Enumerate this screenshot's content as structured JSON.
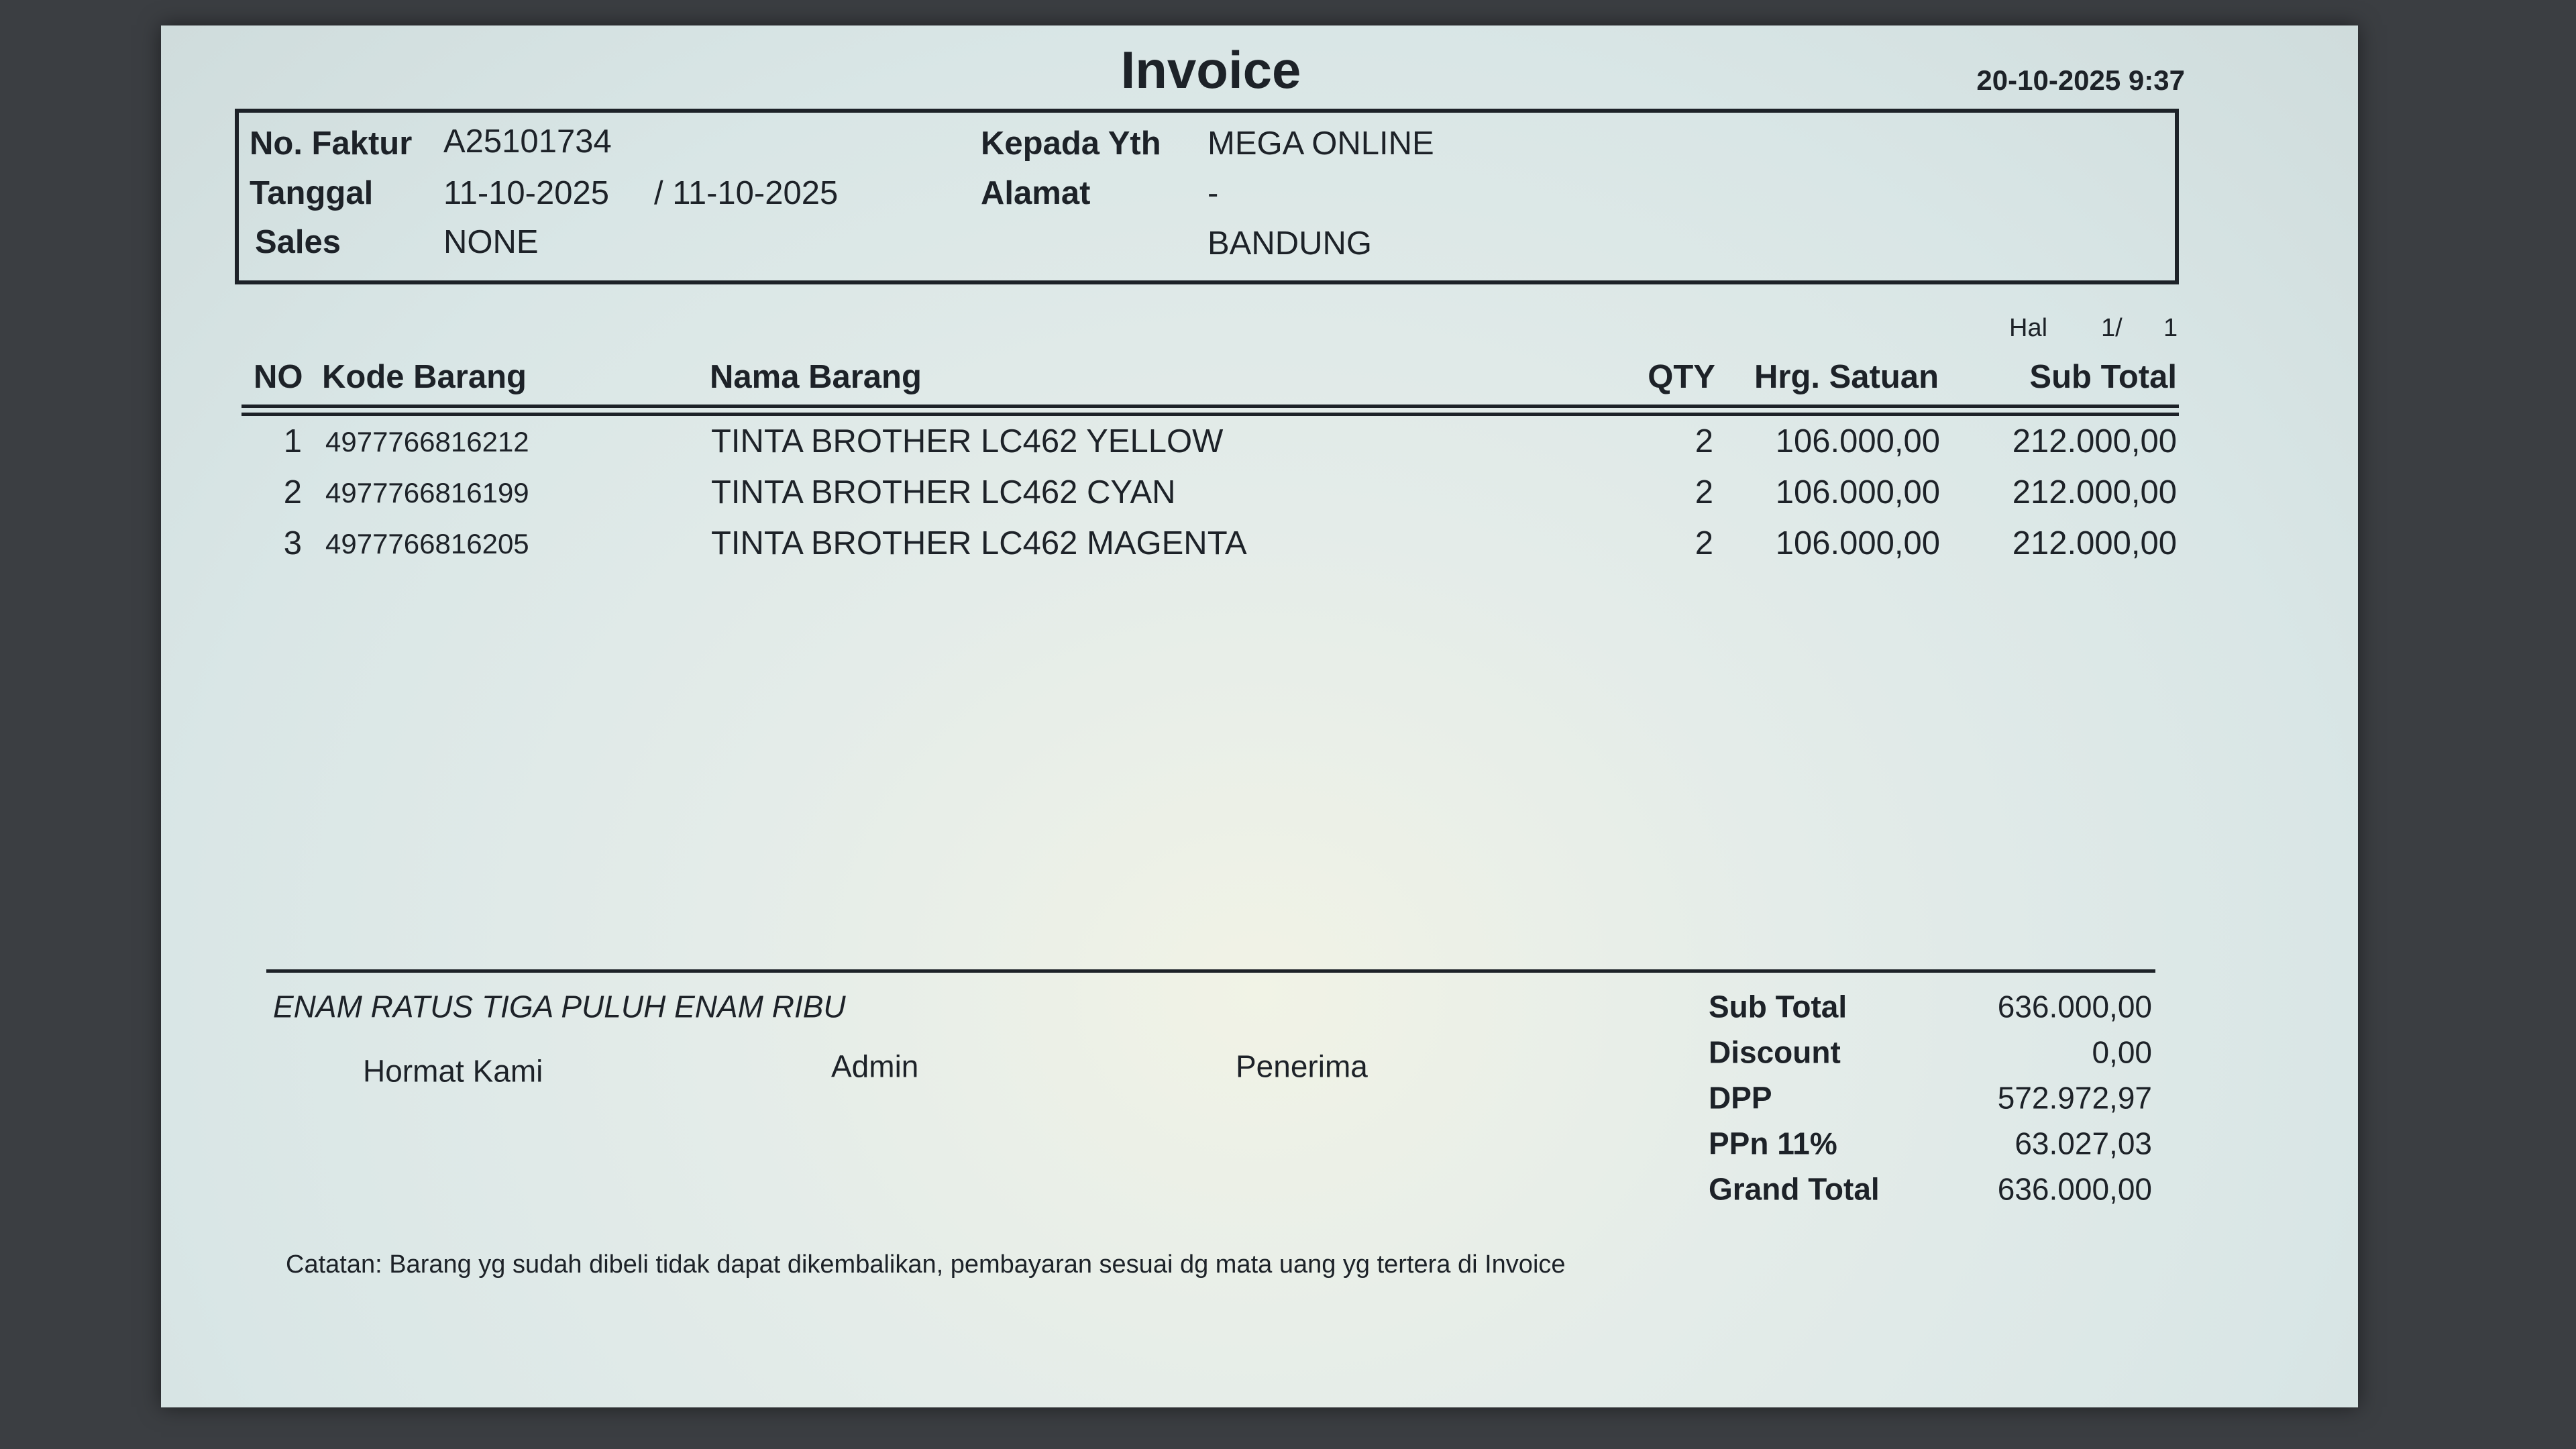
{
  "title": "Invoice",
  "printed_at": "20-10-2025 9:37",
  "header": {
    "no_faktur_label": "No. Faktur",
    "no_faktur": "A25101734",
    "tanggal_label": "Tanggal",
    "tanggal": "11-10-2025",
    "tanggal2": "/ 11-10-2025",
    "sales_label": "Sales",
    "sales": "NONE",
    "kepada_label": "Kepada Yth",
    "kepada": "MEGA ONLINE",
    "alamat_label": "Alamat",
    "alamat": "-",
    "kota": "BANDUNG"
  },
  "page": {
    "label": "Hal",
    "current": "1/",
    "total": "1"
  },
  "table": {
    "columns": [
      "NO",
      "Kode Barang",
      "Nama Barang",
      "QTY",
      "Hrg. Satuan",
      "Sub Total"
    ],
    "rows": [
      {
        "no": "1",
        "kode": "4977766816212",
        "nama": "TINTA BROTHER LC462 YELLOW",
        "qty": "2",
        "harga": "106.000,00",
        "subtotal": "212.000,00"
      },
      {
        "no": "2",
        "kode": "4977766816199",
        "nama": "TINTA BROTHER LC462 CYAN",
        "qty": "2",
        "harga": "106.000,00",
        "subtotal": "212.000,00"
      },
      {
        "no": "3",
        "kode": "4977766816205",
        "nama": "TINTA BROTHER LC462 MAGENTA",
        "qty": "2",
        "harga": "106.000,00",
        "subtotal": "212.000,00"
      }
    ]
  },
  "terbilang": "ENAM RATUS TIGA PULUH ENAM RIBU",
  "signatures": {
    "hormat": "Hormat Kami",
    "admin": "Admin",
    "penerima": "Penerima"
  },
  "totals": [
    {
      "label": "Sub Total",
      "value": "636.000,00"
    },
    {
      "label": "Discount",
      "value": "0,00"
    },
    {
      "label": "DPP",
      "value": "572.972,97"
    },
    {
      "label": "PPn 11%",
      "value": "63.027,03"
    },
    {
      "label": "Grand Total",
      "value": "636.000,00"
    }
  ],
  "catatan": "Catatan: Barang yg sudah dibeli tidak dapat dikembalikan, pembayaran sesuai dg mata uang yg tertera di Invoice"
}
